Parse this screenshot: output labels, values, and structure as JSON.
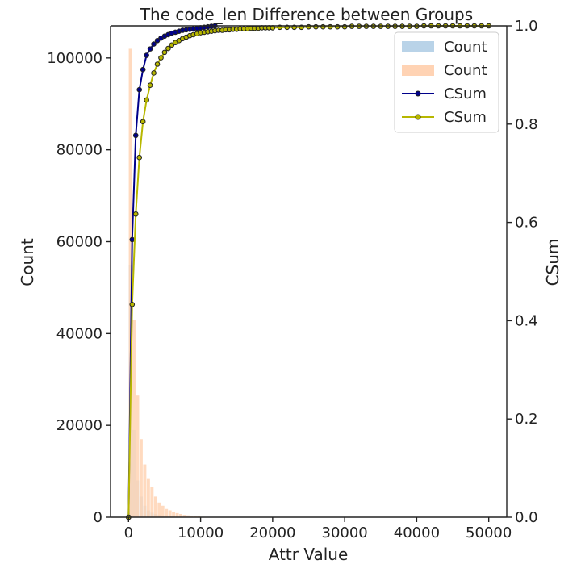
{
  "chart_data": {
    "type": "bar+line",
    "title": "The code_len Difference between Groups",
    "xlabel": "Attr Value",
    "ylabel_left": "Count",
    "ylabel_right": "CSum",
    "xlim": [
      -2500,
      52500
    ],
    "ylim_left": [
      0,
      107000
    ],
    "ylim_right": [
      0,
      1.0
    ],
    "x_ticks": [
      0,
      10000,
      20000,
      30000,
      40000,
      50000
    ],
    "y_left_ticks": [
      0,
      20000,
      40000,
      60000,
      80000,
      100000
    ],
    "y_right_ticks": [
      0.0,
      0.2,
      0.4,
      0.6,
      0.8,
      1.0
    ],
    "legend_position": "upper right",
    "legend": [
      {
        "label": "Count",
        "kind": "patch",
        "color": "#b9d3e8"
      },
      {
        "label": "Count",
        "kind": "patch",
        "color": "#ffd3b4"
      },
      {
        "label": "CSum",
        "kind": "line",
        "color": "#00008b"
      },
      {
        "label": "CSum",
        "kind": "line",
        "color": "#b7b700"
      }
    ],
    "bin_width": 500,
    "histograms": [
      {
        "name": "Count",
        "color": "#b9d3e8",
        "bin_starts": [
          0,
          500,
          1000,
          1500,
          2000,
          2500,
          3000,
          3500,
          4000,
          4500,
          5000,
          5500,
          6000
        ],
        "values": [
          55000,
          19000,
          8000,
          4500,
          2500,
          1500,
          1000,
          700,
          500,
          350,
          250,
          180,
          120
        ]
      },
      {
        "name": "Count",
        "color": "#ffd3b4",
        "bin_starts": [
          0,
          500,
          1000,
          1500,
          2000,
          2500,
          3000,
          3500,
          4000,
          4500,
          5000,
          5500,
          6000,
          6500,
          7000,
          7500,
          8000,
          8500,
          9000,
          9500
        ],
        "values": [
          102000,
          43000,
          26500,
          17000,
          11500,
          8500,
          6500,
          4500,
          3200,
          2500,
          1800,
          1500,
          1200,
          900,
          700,
          500,
          400,
          300,
          250,
          200
        ]
      }
    ],
    "cumulative": [
      {
        "name": "CSum",
        "color": "#00008b",
        "marker_fill": "#00008b",
        "x": [
          0,
          500,
          1000,
          1500,
          2000,
          2500,
          3000,
          3500,
          4000,
          4500,
          5000,
          5500,
          6000,
          6500,
          7000,
          7500,
          8000,
          8500,
          9000,
          9500,
          10000,
          10500,
          11000,
          11500,
          12000
        ],
        "y": [
          0.0,
          0.565,
          0.777,
          0.87,
          0.911,
          0.94,
          0.953,
          0.963,
          0.97,
          0.975,
          0.979,
          0.982,
          0.985,
          0.987,
          0.989,
          0.991,
          0.992,
          0.993,
          0.994,
          0.995,
          0.996,
          0.997,
          0.998,
          0.999,
          1.0
        ]
      },
      {
        "name": "CSum",
        "color": "#b7b700",
        "marker_fill": "#b7b700",
        "x": [
          0,
          500,
          1000,
          1500,
          2000,
          2500,
          3000,
          3500,
          4000,
          4500,
          5000,
          5500,
          6000,
          6500,
          7000,
          7500,
          8000,
          8500,
          9000,
          9500,
          10000,
          10500,
          11000,
          11500,
          12000,
          12500,
          13000,
          13500,
          14000,
          14500,
          15000,
          15500,
          16000,
          16500,
          17000,
          17500,
          18000,
          18500,
          19000,
          19500,
          20000,
          21000,
          22000,
          23000,
          24000,
          25000,
          26000,
          27000,
          28000,
          29000,
          30000,
          31000,
          32000,
          33000,
          34000,
          35000,
          36000,
          37000,
          38000,
          39000,
          40000,
          41000,
          42000,
          43000,
          44000,
          45000,
          46000,
          47000,
          48000,
          49000,
          50000
        ],
        "y": [
          0.0,
          0.433,
          0.617,
          0.732,
          0.805,
          0.849,
          0.879,
          0.904,
          0.922,
          0.935,
          0.946,
          0.954,
          0.961,
          0.966,
          0.97,
          0.974,
          0.977,
          0.98,
          0.982,
          0.984,
          0.986,
          0.987,
          0.988,
          0.989,
          0.99,
          0.991,
          0.991,
          0.992,
          0.992,
          0.993,
          0.993,
          0.994,
          0.994,
          0.994,
          0.995,
          0.995,
          0.995,
          0.996,
          0.996,
          0.996,
          0.996,
          0.997,
          0.997,
          0.997,
          0.997,
          0.998,
          0.998,
          0.998,
          0.998,
          0.998,
          0.998,
          0.999,
          0.999,
          0.999,
          0.999,
          0.999,
          0.999,
          0.999,
          0.999,
          0.999,
          0.999,
          1.0,
          1.0,
          1.0,
          1.0,
          1.0,
          1.0,
          1.0,
          1.0,
          1.0,
          1.0
        ]
      }
    ]
  }
}
